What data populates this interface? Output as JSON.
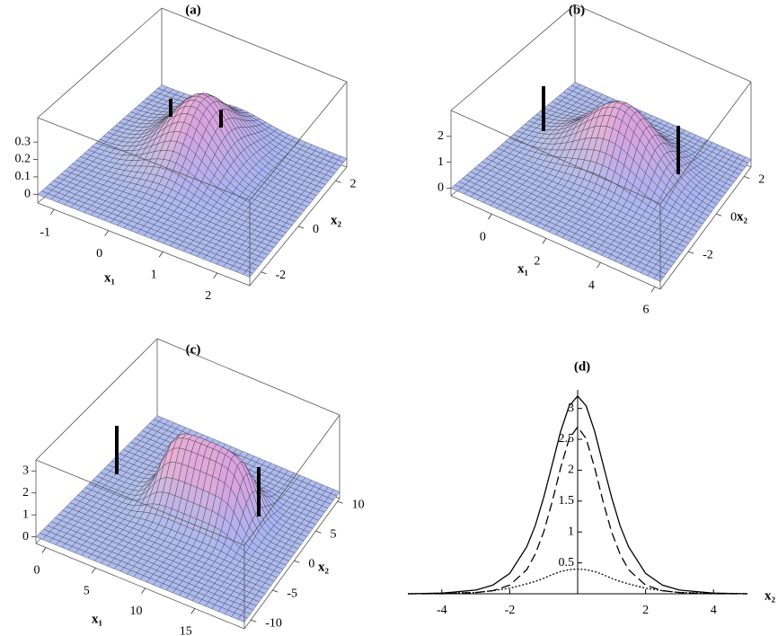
{
  "chart_data": [
    {
      "type": "surface",
      "title": "(a)",
      "xlabel": "x₁",
      "ylabel": "x₂",
      "xlim": [
        -1.3,
        2.6
      ],
      "xticks": [
        -1,
        0,
        1,
        2
      ],
      "ylim": [
        -2.6,
        2.6
      ],
      "yticks": [
        -2,
        0,
        2
      ],
      "zlim": [
        -0.05,
        0.44
      ],
      "zticks": [
        0,
        0.1,
        0.2,
        0.3
      ]
    },
    {
      "type": "surface",
      "title": "(b)",
      "xlabel": "x₁",
      "ylabel": "x₂",
      "xlim": [
        -1.5,
        6.2
      ],
      "xticks": [
        0,
        2,
        4,
        6
      ],
      "ylim": [
        -4,
        2.5
      ],
      "yticks": [
        -2,
        0,
        2
      ],
      "zlim": [
        -0.3,
        3.0
      ],
      "zticks": [
        0,
        1,
        2
      ]
    },
    {
      "type": "surface",
      "title": "(c)",
      "xlabel": "x₁",
      "ylabel": "x₂",
      "xlim": [
        -1,
        20
      ],
      "xticks": [
        0,
        5,
        10,
        15
      ],
      "ylim": [
        -11.5,
        10.5
      ],
      "yticks": [
        -10,
        -5,
        0,
        5,
        10
      ],
      "zlim": [
        -0.3,
        3.5
      ],
      "zticks": [
        0,
        1,
        2,
        3
      ]
    },
    {
      "type": "line",
      "title": "(d)",
      "xlabel": "x₂",
      "x": [
        -5,
        -4,
        -3,
        -2.5,
        -2,
        -1.5,
        -1.25,
        -1,
        -0.75,
        -0.5,
        -0.25,
        0,
        0.25,
        0.5,
        0.75,
        1,
        1.25,
        1.5,
        2,
        2.5,
        3,
        4,
        5
      ],
      "series": [
        {
          "color": "#000000",
          "dash": "solid",
          "values": [
            0,
            0.01,
            0.06,
            0.14,
            0.33,
            0.76,
            1.1,
            1.56,
            2.09,
            2.63,
            3.04,
            3.2,
            3.04,
            2.63,
            2.09,
            1.56,
            1.1,
            0.76,
            0.33,
            0.14,
            0.06,
            0.01,
            0
          ]
        },
        {
          "color": "#000000",
          "dash": "dashed",
          "values": [
            0,
            0,
            0.02,
            0.05,
            0.14,
            0.39,
            0.64,
            1.0,
            1.49,
            2.04,
            2.51,
            2.7,
            2.51,
            2.04,
            1.49,
            1.0,
            0.64,
            0.39,
            0.14,
            0.05,
            0.02,
            0,
            0
          ]
        },
        {
          "color": "#000000",
          "dash": "dotted",
          "values": [
            0,
            0.01,
            0.02,
            0.05,
            0.09,
            0.16,
            0.2,
            0.25,
            0.31,
            0.36,
            0.39,
            0.4,
            0.39,
            0.36,
            0.31,
            0.25,
            0.2,
            0.16,
            0.09,
            0.05,
            0.02,
            0.01,
            0
          ]
        }
      ],
      "xlim": [
        -5,
        5
      ],
      "xticks": [
        -4,
        -2,
        2,
        4
      ],
      "ylim": [
        0,
        3.3
      ],
      "yticks": [
        0.5,
        1,
        1.5,
        2,
        2.5,
        3
      ]
    }
  ]
}
